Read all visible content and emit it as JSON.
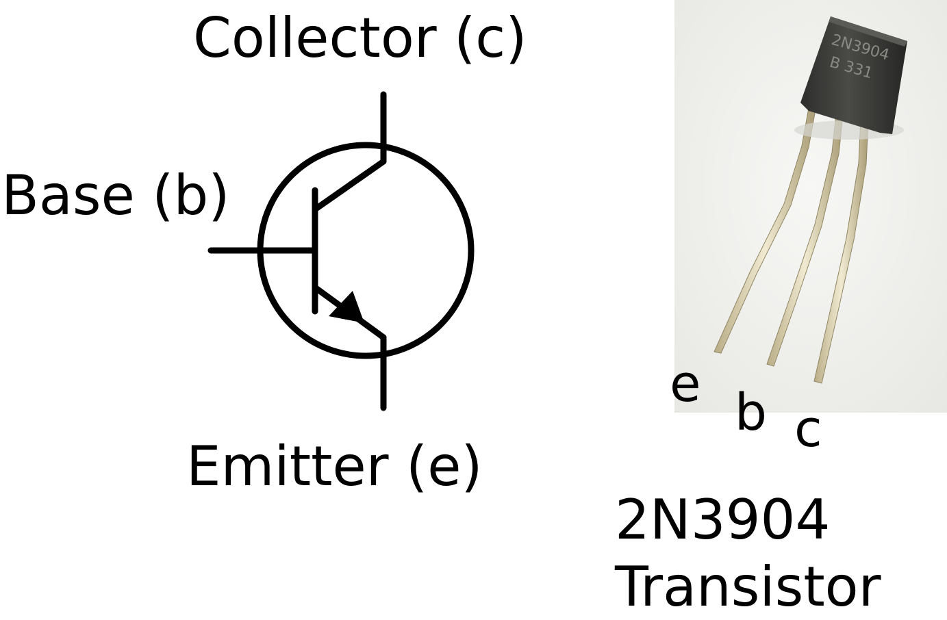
{
  "symbol": {
    "collector_label": "Collector (c)",
    "base_label": "Base (b)",
    "emitter_label": "Emitter (e)"
  },
  "photo": {
    "package_marking_line1": "2N3904",
    "package_marking_line2": "B 331",
    "pin_labels": [
      "e",
      "b",
      "c"
    ]
  },
  "caption": {
    "part_number": "2N3904",
    "part_type": "Transistor"
  },
  "colors": {
    "ink": "#000000",
    "background": "#ffffff",
    "photo_background": "#f2f2f0",
    "package_body": "#3a3a38",
    "lead_metal": "#d9cfae"
  }
}
